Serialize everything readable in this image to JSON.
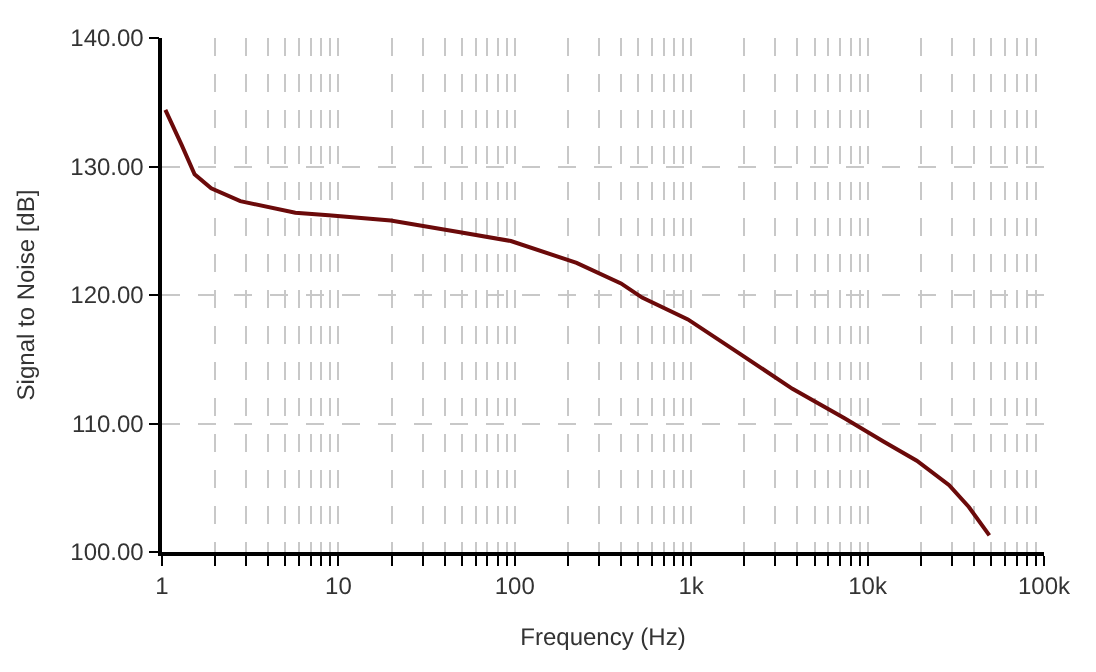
{
  "chart_data": {
    "type": "line",
    "xlabel": "Frequency (Hz)",
    "ylabel": "Signal to Noise [dB]",
    "log": "x",
    "grid": true,
    "legend": false,
    "marker": "none",
    "line_style": "solid",
    "xlim": [
      1,
      100000
    ],
    "ylim": [
      100,
      140
    ],
    "xticks": [
      {
        "value": 1,
        "label": "1"
      },
      {
        "value": 2,
        "label": null
      },
      {
        "value": 3,
        "label": null
      },
      {
        "value": 4,
        "label": null
      },
      {
        "value": 5,
        "label": null
      },
      {
        "value": 6,
        "label": null
      },
      {
        "value": 7,
        "label": null
      },
      {
        "value": 8,
        "label": null
      },
      {
        "value": 9,
        "label": null
      },
      {
        "value": 10,
        "label": "10"
      },
      {
        "value": 20,
        "label": null
      },
      {
        "value": 30,
        "label": null
      },
      {
        "value": 40,
        "label": null
      },
      {
        "value": 50,
        "label": null
      },
      {
        "value": 60,
        "label": null
      },
      {
        "value": 70,
        "label": null
      },
      {
        "value": 80,
        "label": null
      },
      {
        "value": 90,
        "label": null
      },
      {
        "value": 100,
        "label": "100"
      },
      {
        "value": 200,
        "label": null
      },
      {
        "value": 300,
        "label": null
      },
      {
        "value": 400,
        "label": null
      },
      {
        "value": 500,
        "label": null
      },
      {
        "value": 600,
        "label": null
      },
      {
        "value": 700,
        "label": null
      },
      {
        "value": 800,
        "label": null
      },
      {
        "value": 900,
        "label": null
      },
      {
        "value": 1000,
        "label": "1k"
      },
      {
        "value": 2000,
        "label": null
      },
      {
        "value": 3000,
        "label": null
      },
      {
        "value": 4000,
        "label": null
      },
      {
        "value": 5000,
        "label": null
      },
      {
        "value": 6000,
        "label": null
      },
      {
        "value": 7000,
        "label": null
      },
      {
        "value": 8000,
        "label": null
      },
      {
        "value": 9000,
        "label": null
      },
      {
        "value": 10000,
        "label": "10k"
      },
      {
        "value": 20000,
        "label": null
      },
      {
        "value": 30000,
        "label": null
      },
      {
        "value": 40000,
        "label": null
      },
      {
        "value": 50000,
        "label": null
      },
      {
        "value": 60000,
        "label": null
      },
      {
        "value": 70000,
        "label": null
      },
      {
        "value": 80000,
        "label": null
      },
      {
        "value": 90000,
        "label": null
      },
      {
        "value": 100000,
        "label": "100k"
      }
    ],
    "yticks": [
      {
        "value": 100,
        "label": "100.00"
      },
      {
        "value": 110,
        "label": "110.00"
      },
      {
        "value": 120,
        "label": "120.00"
      },
      {
        "value": 130,
        "label": "130.00"
      },
      {
        "value": 140,
        "label": "140.00"
      }
    ],
    "series": [
      {
        "color": "#6b0a0a",
        "x": [
          1.045,
          1.29,
          1.53,
          1.9,
          2.78,
          5.7,
          8.8,
          19.8,
          48,
          95,
          224,
          400,
          527,
          958,
          1900,
          3750,
          7400,
          12300,
          19000,
          29000,
          37500,
          49000
        ],
        "values": [
          134.4,
          131.7,
          129.4,
          128.3,
          127.3,
          126.4,
          126.2,
          125.8,
          124.9,
          124.2,
          122.5,
          120.9,
          119.8,
          118.1,
          115.4,
          112.7,
          110.4,
          108.6,
          107.1,
          105.2,
          103.5,
          101.3
        ]
      }
    ]
  }
}
